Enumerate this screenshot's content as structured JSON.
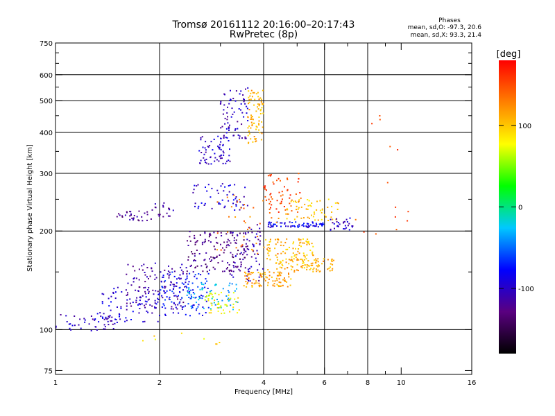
{
  "chart_data": {
    "type": "scatter",
    "title_line1": "Tromsø 20161112 20:16:00–20:17:43",
    "title_line2": "RwPretec (8p)",
    "xlabel": "Frequency [MHz]",
    "ylabel": "Stationary phase Virtual Height [km]",
    "x_scale": "log",
    "y_scale": "log",
    "xlim": [
      1,
      16
    ],
    "ylim": [
      73,
      750
    ],
    "x_ticks": [
      1,
      2,
      4,
      6,
      8,
      10,
      16
    ],
    "x_gridlines": [
      2,
      4,
      6,
      8
    ],
    "x_minor_ticks": [
      3,
      5,
      7,
      9
    ],
    "y_ticks": [
      75,
      100,
      200,
      300,
      400,
      500,
      600,
      750
    ],
    "y_gridlines": [
      100,
      200,
      300,
      400,
      500,
      600
    ],
    "y_minor_ticks": [
      150,
      250,
      350,
      450,
      550,
      650,
      700
    ],
    "grid": true,
    "phases": {
      "title": "Phases",
      "o_line": "mean, sd,O: -97.3, 20.6",
      "x_line": "mean, sd,X:  93.3, 21.4"
    },
    "colorbar": {
      "unit": "[deg]",
      "range": [
        -180,
        180
      ],
      "ticks": [
        100,
        0,
        -100
      ],
      "colors": [
        "#000000",
        "#5a0080",
        "#0000ff",
        "#00c8ff",
        "#00ff00",
        "#ffff00",
        "#ff8000",
        "#ff0000"
      ]
    },
    "series": [
      {
        "clusters": [
          {
            "x": [
              1.0,
              1.5
            ],
            "y": [
              98,
              112
            ],
            "phase": -105,
            "n": 45
          },
          {
            "x": [
              1.3,
              2.0
            ],
            "y": [
              105,
              135
            ],
            "phase": -95,
            "n": 80
          },
          {
            "x": [
              1.6,
              2.4
            ],
            "y": [
              115,
              160
            ],
            "phase": -115,
            "n": 120
          },
          {
            "x": [
              2.0,
              2.8
            ],
            "y": [
              110,
              150
            ],
            "phase": -75,
            "n": 110
          },
          {
            "x": [
              2.4,
              3.4
            ],
            "y": [
              115,
              140
            ],
            "phase": -30,
            "n": 60
          },
          {
            "x": [
              2.7,
              3.4
            ],
            "y": [
              112,
              130
            ],
            "phase": 80,
            "n": 45
          },
          {
            "x": [
              2.4,
              3.6
            ],
            "y": [
              150,
              200
            ],
            "phase": -125,
            "n": 140
          },
          {
            "x": [
              3.2,
              4.0
            ],
            "y": [
              140,
              210
            ],
            "phase": -110,
            "n": 70
          },
          {
            "x": [
              3.5,
              4.8
            ],
            "y": [
              135,
              150
            ],
            "phase": 115,
            "n": 90
          },
          {
            "x": [
              4.0,
              5.6
            ],
            "y": [
              150,
              190
            ],
            "phase": 105,
            "n": 110
          },
          {
            "x": [
              4.6,
              6.4
            ],
            "y": [
              150,
              165
            ],
            "phase": 110,
            "n": 70
          },
          {
            "x": [
              1.5,
              1.9
            ],
            "y": [
              215,
              230
            ],
            "phase": -120,
            "n": 30
          },
          {
            "x": [
              1.9,
              2.2
            ],
            "y": [
              220,
              245
            ],
            "phase": -115,
            "n": 20
          },
          {
            "x": [
              2.5,
              3.6
            ],
            "y": [
              230,
              280
            ],
            "phase": -95,
            "n": 55
          },
          {
            "x": [
              4.0,
              5.2
            ],
            "y": [
              225,
              300
            ],
            "phase": 150,
            "n": 60
          },
          {
            "x": [
              4.0,
              6.0
            ],
            "y": [
              205,
              213
            ],
            "phase": -85,
            "n": 70
          },
          {
            "x": [
              4.6,
              6.6
            ],
            "y": [
              215,
              250
            ],
            "phase": 100,
            "n": 60
          },
          {
            "x": [
              6.2,
              7.3
            ],
            "y": [
              200,
              220
            ],
            "phase": -100,
            "n": 30
          },
          {
            "x": [
              2.6,
              3.2
            ],
            "y": [
              320,
              390
            ],
            "phase": -100,
            "n": 65
          },
          {
            "x": [
              3.0,
              3.6
            ],
            "y": [
              380,
              560
            ],
            "phase": -105,
            "n": 70
          },
          {
            "x": [
              3.6,
              4.0
            ],
            "y": [
              370,
              540
            ],
            "phase": 110,
            "n": 80
          },
          {
            "x": [
              2.9,
              4.5
            ],
            "y": [
              170,
              260
            ],
            "phase": 130,
            "n": 40
          },
          {
            "x": [
              1.7,
              3.0
            ],
            "y": [
              85,
              100
            ],
            "phase": 90,
            "n": 8
          },
          {
            "x": [
              6.5,
              10.8
            ],
            "y": [
              190,
              480
            ],
            "phase": 150,
            "n": 14
          }
        ]
      }
    ]
  }
}
